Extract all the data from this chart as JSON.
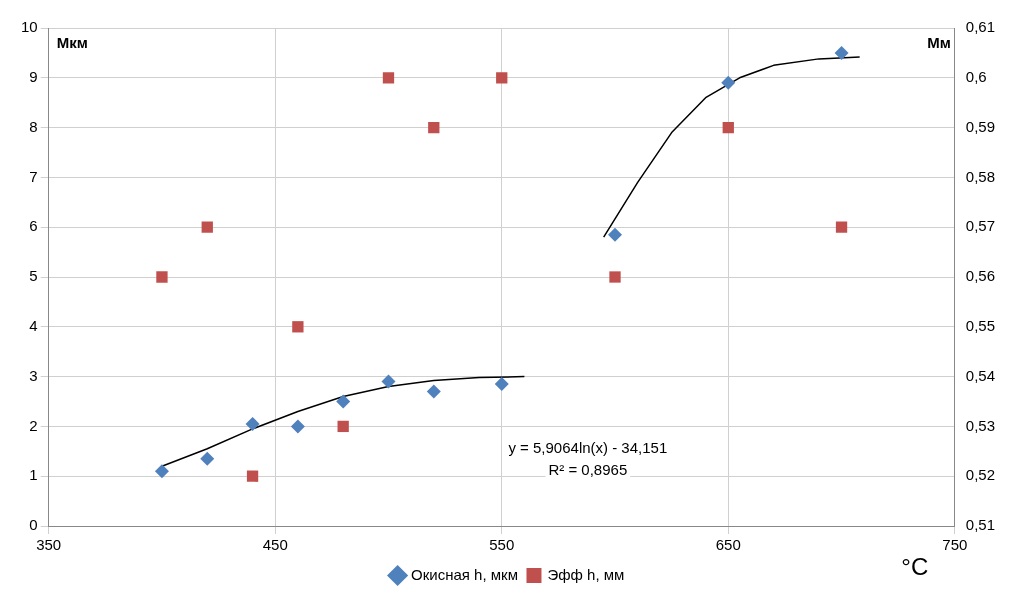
{
  "chart_data": {
    "type": "scatter",
    "x": [
      400,
      420,
      440,
      460,
      480,
      500,
      520,
      550,
      600,
      650,
      700
    ],
    "series": [
      {
        "name": "Окисная h, мкм",
        "color": "#4f81bd",
        "marker": "diamond",
        "values": [
          1.1,
          1.35,
          2.05,
          2.0,
          2.5,
          2.9,
          2.7,
          2.85,
          5.85,
          8.9,
          9.5
        ]
      },
      {
        "name": "Эфф h, мм",
        "color": "#c0504d",
        "marker": "square",
        "axis": "y2",
        "values": [
          0.56,
          0.57,
          0.52,
          0.55,
          0.53,
          0.6,
          0.59,
          0.6,
          0.56,
          0.59,
          0.57
        ]
      },
      {
        "type": "line",
        "color": "#000000",
        "marker": "none",
        "x": [
          400,
          420,
          440,
          460,
          480,
          500,
          520,
          540,
          560
        ],
        "values": [
          1.2,
          1.55,
          1.95,
          2.3,
          2.6,
          2.8,
          2.92,
          2.98,
          3.0
        ]
      },
      {
        "type": "line",
        "color": "#000000",
        "marker": "none",
        "x": [
          595,
          610,
          625,
          640,
          655,
          670,
          690,
          708
        ],
        "values": [
          5.8,
          6.9,
          7.9,
          8.6,
          9.0,
          9.25,
          9.38,
          9.42
        ]
      }
    ],
    "xlim": [
      350,
      750
    ],
    "xticks": [
      350,
      450,
      550,
      650,
      750
    ],
    "ylim": [
      0,
      10
    ],
    "yticks": [
      0,
      1,
      2,
      3,
      4,
      5,
      6,
      7,
      8,
      9,
      10
    ],
    "y2lim": [
      0.51,
      0.61
    ],
    "y2ticks": [
      {
        "value": 0.51,
        "label": "0,51"
      },
      {
        "value": 0.52,
        "label": "0,52"
      },
      {
        "value": 0.53,
        "label": "0,53"
      },
      {
        "value": 0.54,
        "label": "0,54"
      },
      {
        "value": 0.55,
        "label": "0,55"
      },
      {
        "value": 0.56,
        "label": "0,56"
      },
      {
        "value": 0.57,
        "label": "0,57"
      },
      {
        "value": 0.58,
        "label": "0,58"
      },
      {
        "value": 0.59,
        "label": "0,59"
      },
      {
        "value": 0.6,
        "label": "0,6"
      },
      {
        "value": 0.61,
        "label": "0,61"
      }
    ],
    "ylabel": "Мкм",
    "y2label": "Мм",
    "xlabel": "°C",
    "annotations": [
      "y = 5,9064ln(x) - 34,151",
      "R² = 0,8965"
    ],
    "grid": true,
    "legend": "bottom"
  }
}
